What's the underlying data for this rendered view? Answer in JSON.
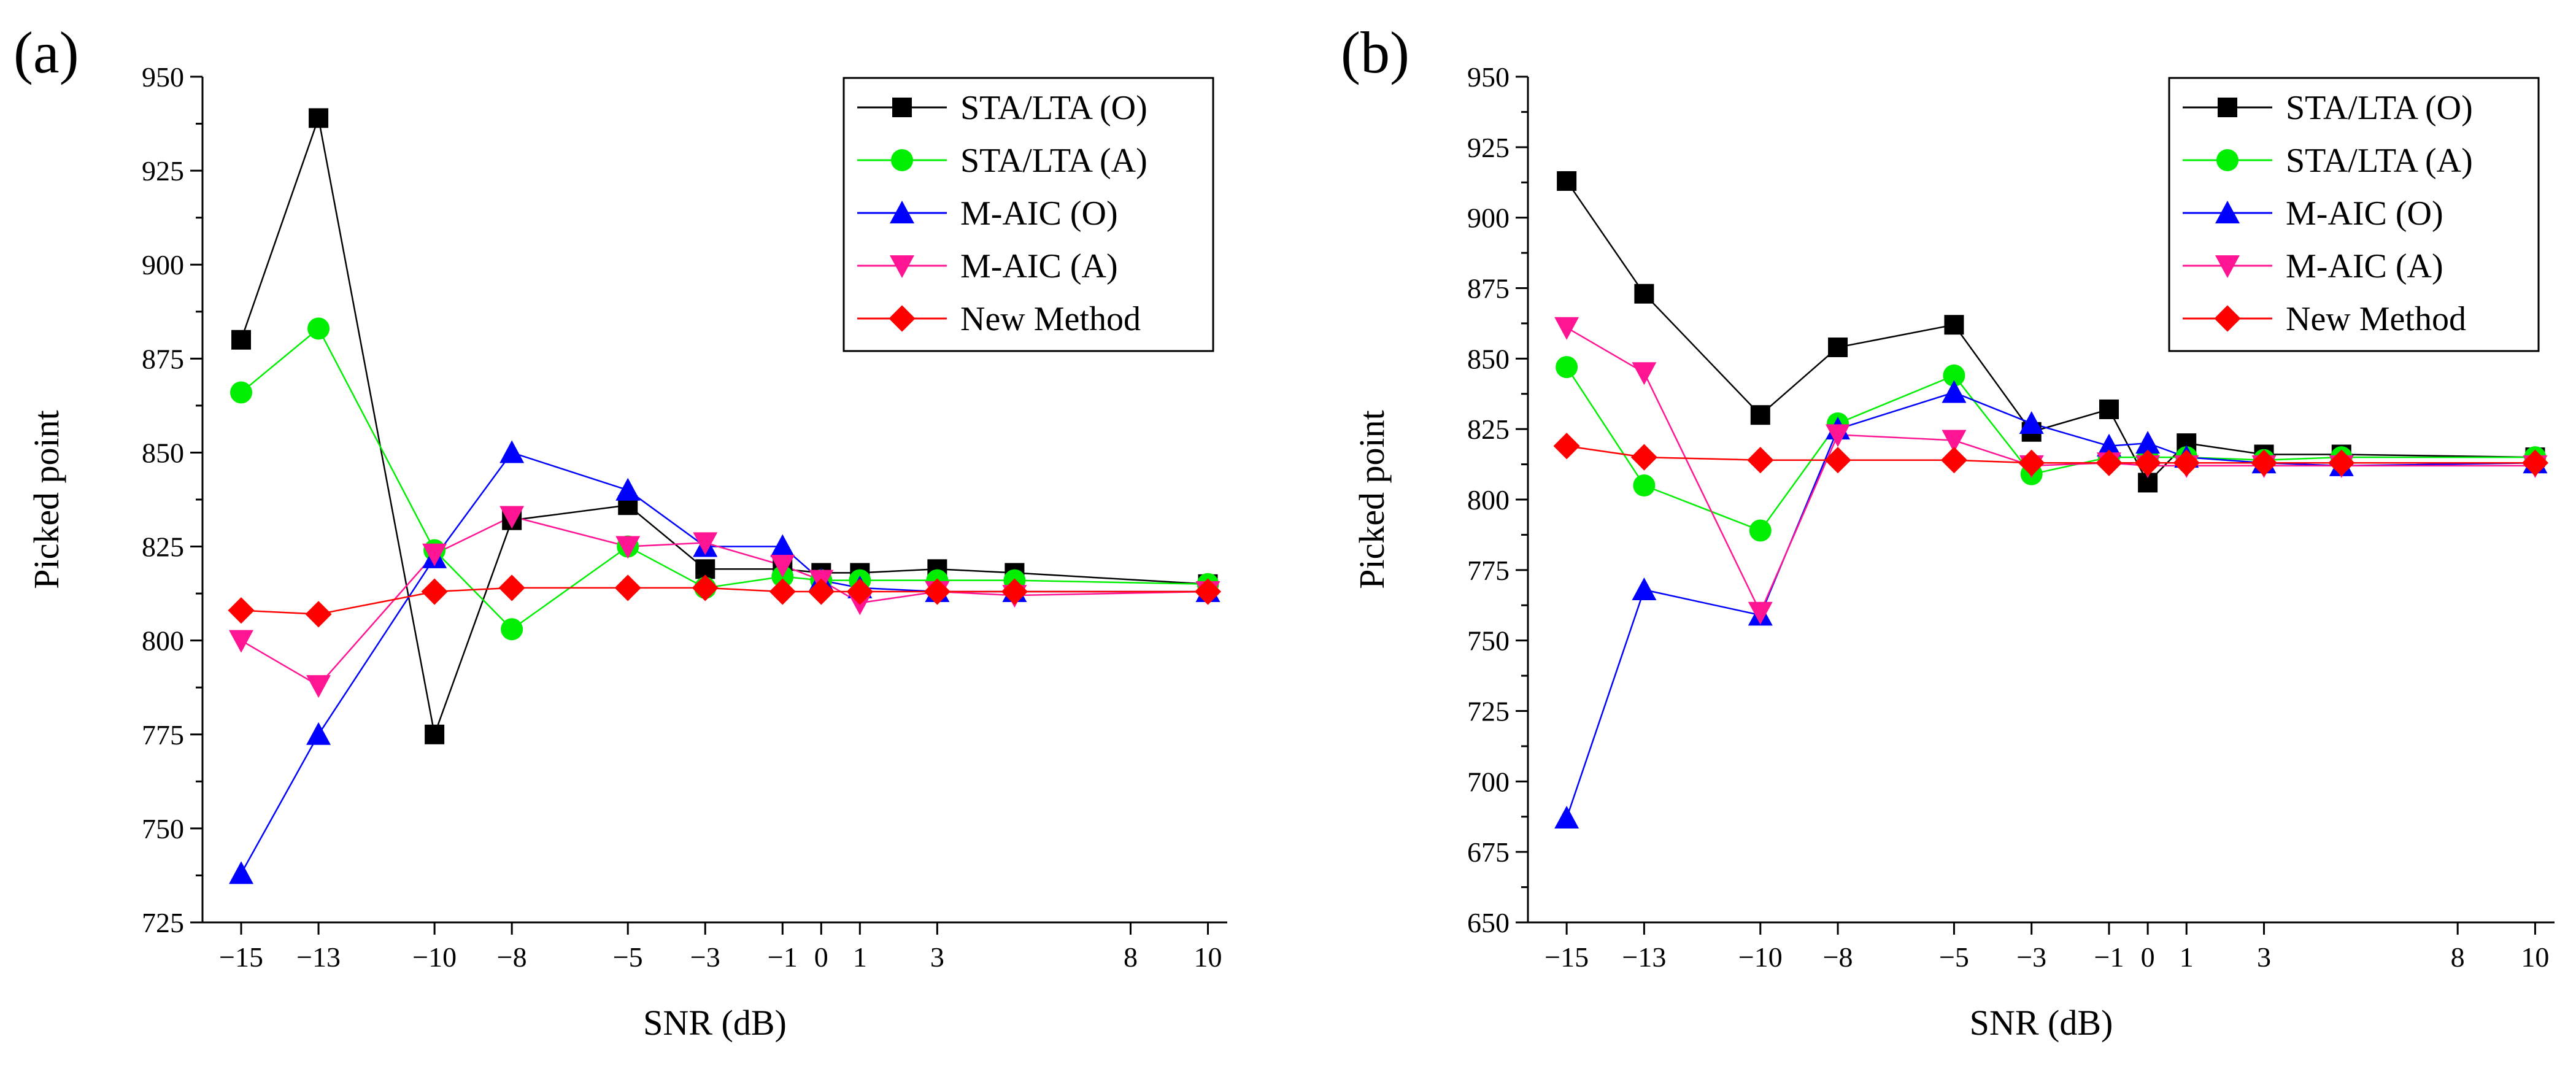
{
  "chart_data": [
    {
      "type": "line",
      "panel_label": "(a)",
      "xlabel": "SNR (dB)",
      "ylabel": "Picked point",
      "x": [
        -15,
        -13,
        -10,
        -8,
        -5,
        -3,
        -1,
        0,
        1,
        3,
        5,
        10
      ],
      "x_ticks": [
        -15,
        -13,
        -10,
        -8,
        -5,
        -3,
        -1,
        0,
        1,
        3,
        8,
        10
      ],
      "x_tick_labels": [
        "−15",
        "−13",
        "−10",
        "−8",
        "−5",
        "−3",
        "−1",
        "0",
        "1",
        "3",
        "8",
        "10"
      ],
      "xlim": [
        -16,
        10.5
      ],
      "ylim": [
        725,
        950
      ],
      "y_ticks": [
        725,
        750,
        775,
        800,
        825,
        850,
        875,
        900,
        925,
        950
      ],
      "legend_position": "top-right",
      "series": [
        {
          "name": "STA/LTA (O)",
          "color": "#000000",
          "marker": "square",
          "values": [
            880,
            939,
            775,
            832,
            836,
            819,
            819,
            818,
            818,
            819,
            818,
            815
          ]
        },
        {
          "name": "STA/LTA (A)",
          "color": "#00ee00",
          "marker": "circle",
          "values": [
            866,
            883,
            824,
            803,
            825,
            814,
            817,
            816,
            816,
            816,
            816,
            815
          ]
        },
        {
          "name": "M-AIC (O)",
          "color": "#0000ff",
          "marker": "triangle-up",
          "values": [
            738,
            775,
            822,
            850,
            840,
            825,
            825,
            816,
            814,
            813,
            813,
            813
          ]
        },
        {
          "name": "M-AIC (A)",
          "color": "#ff1493",
          "marker": "triangle-down",
          "values": [
            800,
            788,
            823,
            833,
            825,
            826,
            820,
            816,
            810,
            813,
            812,
            813
          ]
        },
        {
          "name": "New Method",
          "color": "#ff0000",
          "marker": "diamond",
          "values": [
            808,
            807,
            813,
            814,
            814,
            814,
            813,
            813,
            813,
            813,
            813,
            813
          ]
        }
      ]
    },
    {
      "type": "line",
      "panel_label": "(b)",
      "xlabel": "SNR (dB)",
      "ylabel": "Picked point",
      "x": [
        -15,
        -13,
        -10,
        -8,
        -5,
        -3,
        -1,
        0,
        1,
        3,
        5,
        10
      ],
      "x_ticks": [
        -15,
        -13,
        -10,
        -8,
        -5,
        -3,
        -1,
        0,
        1,
        3,
        8,
        10
      ],
      "x_tick_labels": [
        "−15",
        "−13",
        "−10",
        "−8",
        "−5",
        "−3",
        "−1",
        "0",
        "1",
        "3",
        "8",
        "10"
      ],
      "xlim": [
        -16,
        10.5
      ],
      "ylim": [
        650,
        950
      ],
      "y_ticks": [
        650,
        675,
        700,
        725,
        750,
        775,
        800,
        825,
        850,
        875,
        900,
        925,
        950
      ],
      "legend_position": "top-right",
      "series": [
        {
          "name": "STA/LTA (O)",
          "color": "#000000",
          "marker": "square",
          "values": [
            913,
            873,
            830,
            854,
            862,
            824,
            832,
            806,
            820,
            816,
            816,
            815
          ]
        },
        {
          "name": "STA/LTA (A)",
          "color": "#00ee00",
          "marker": "circle",
          "values": [
            847,
            805,
            789,
            827,
            844,
            809,
            815,
            815,
            815,
            814,
            815,
            815
          ]
        },
        {
          "name": "M-AIC (O)",
          "color": "#0000ff",
          "marker": "triangle-up",
          "values": [
            687,
            768,
            759,
            825,
            838,
            827,
            819,
            820,
            815,
            813,
            812,
            813
          ]
        },
        {
          "name": "M-AIC (A)",
          "color": "#ff1493",
          "marker": "triangle-down",
          "values": [
            861,
            845,
            760,
            823,
            821,
            812,
            813,
            812,
            812,
            812,
            812,
            812
          ]
        },
        {
          "name": "New Method",
          "color": "#ff0000",
          "marker": "diamond",
          "values": [
            819,
            815,
            814,
            814,
            814,
            813,
            813,
            813,
            813,
            813,
            813,
            813
          ]
        }
      ]
    }
  ]
}
